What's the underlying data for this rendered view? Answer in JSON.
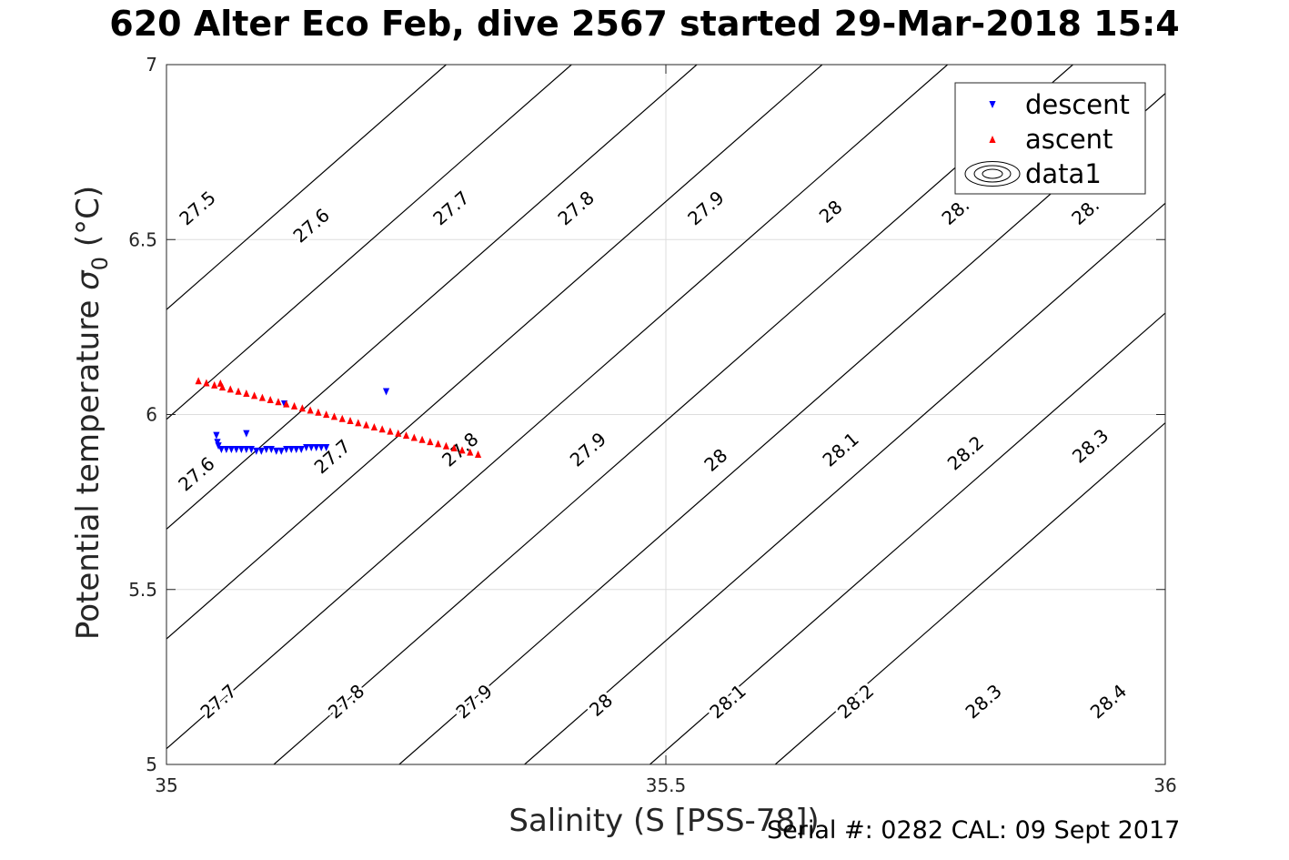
{
  "figure": {
    "title": "620 Alter Eco Feb, dive 2567 started 29-Mar-2018 15:4",
    "footer": "Serial #: 0282  CAL: 09 Sept 2017"
  },
  "colors": {
    "descent": "#0000ff",
    "ascent": "#ff0000",
    "contour": "#000000",
    "grid": "#dddddd"
  },
  "chart_data": {
    "type": "scatter",
    "xlabel": "Salinity (S [PSS-78])",
    "ylabel_main": "Potential temperature ",
    "ylabel_sym": "σ",
    "ylabel_sub": "0",
    "ylabel_unit": " (°C)",
    "xlim": [
      35,
      36
    ],
    "ylim": [
      5,
      7
    ],
    "xticks": [
      35,
      35.5,
      36
    ],
    "xtick_labels": [
      "35",
      "35.5",
      "36"
    ],
    "yticks": [
      5,
      5.5,
      6,
      6.5,
      7
    ],
    "ytick_labels": [
      "5",
      "5.5",
      "6",
      "6.5",
      "7"
    ],
    "grid": true,
    "legend_position": "top-right",
    "legend": [
      {
        "name": "descent",
        "marker": "triangle-down",
        "color": "#0000ff"
      },
      {
        "name": "ascent",
        "marker": "triangle-up",
        "color": "#ff0000"
      },
      {
        "name": "data1",
        "marker": "contour",
        "color": "#000000"
      }
    ],
    "series": [
      {
        "name": "descent",
        "marker": "triangle-down",
        "color": "#0000ff",
        "x": [
          35.05,
          35.051,
          35.052,
          35.055,
          35.06,
          35.065,
          35.07,
          35.075,
          35.08,
          35.085,
          35.09,
          35.095,
          35.1,
          35.105,
          35.11,
          35.115,
          35.12,
          35.125,
          35.13,
          35.135,
          35.14,
          35.145,
          35.15,
          35.155,
          35.16,
          35.08,
          35.118,
          35.22
        ],
        "y": [
          5.94,
          5.92,
          5.91,
          5.9,
          5.9,
          5.9,
          5.9,
          5.9,
          5.9,
          5.9,
          5.895,
          5.895,
          5.9,
          5.9,
          5.895,
          5.895,
          5.9,
          5.9,
          5.9,
          5.9,
          5.905,
          5.905,
          5.905,
          5.905,
          5.905,
          5.945,
          6.03,
          6.065
        ]
      },
      {
        "name": "ascent",
        "marker": "triangle-up",
        "color": "#ff0000",
        "x": [
          35.032,
          35.04,
          35.048,
          35.056,
          35.064,
          35.072,
          35.08,
          35.088,
          35.096,
          35.104,
          35.112,
          35.12,
          35.128,
          35.136,
          35.144,
          35.152,
          35.16,
          35.168,
          35.176,
          35.184,
          35.192,
          35.2,
          35.208,
          35.216,
          35.224,
          35.232,
          35.24,
          35.248,
          35.256,
          35.264,
          35.272,
          35.28,
          35.288,
          35.296,
          35.304,
          35.312,
          35.054
        ],
        "y": [
          6.097,
          6.091,
          6.085,
          6.079,
          6.073,
          6.067,
          6.061,
          6.055,
          6.049,
          6.043,
          6.037,
          6.031,
          6.025,
          6.019,
          6.013,
          6.007,
          6.001,
          5.995,
          5.989,
          5.983,
          5.977,
          5.971,
          5.965,
          5.959,
          5.953,
          5.947,
          5.941,
          5.935,
          5.929,
          5.923,
          5.917,
          5.911,
          5.905,
          5.899,
          5.893,
          5.887,
          6.09
        ]
      }
    ],
    "contour_levels": [
      27.5,
      27.6,
      27.7,
      27.8,
      27.9,
      28,
      28.1,
      28.2,
      28.3,
      28.4
    ],
    "contour_labels": [
      {
        "text": "27.5",
        "x": 35.031,
        "y": 6.59
      },
      {
        "text": "27.6",
        "x": 35.145,
        "y": 6.54
      },
      {
        "text": "27.7",
        "x": 35.285,
        "y": 6.59
      },
      {
        "text": "27.8",
        "x": 35.41,
        "y": 6.59
      },
      {
        "text": "27.9",
        "x": 35.54,
        "y": 6.59
      },
      {
        "text": "28",
        "x": 35.665,
        "y": 6.58
      },
      {
        "text": "28.",
        "x": 35.79,
        "y": 6.58
      },
      {
        "text": "28.",
        "x": 35.92,
        "y": 6.58
      },
      {
        "text": "27.6",
        "x": 35.03,
        "y": 5.83
      },
      {
        "text": "27.7",
        "x": 35.166,
        "y": 5.88
      },
      {
        "text": "27.8",
        "x": 35.294,
        "y": 5.9
      },
      {
        "text": "27.9",
        "x": 35.422,
        "y": 5.9
      },
      {
        "text": "28",
        "x": 35.55,
        "y": 5.87
      },
      {
        "text": "28.1",
        "x": 35.675,
        "y": 5.9
      },
      {
        "text": "28.2",
        "x": 35.8,
        "y": 5.89
      },
      {
        "text": "28.3",
        "x": 35.925,
        "y": 5.91
      },
      {
        "text": "27.7",
        "x": 35.052,
        "y": 5.18
      },
      {
        "text": "27.8",
        "x": 35.18,
        "y": 5.18
      },
      {
        "text": "27.9",
        "x": 35.308,
        "y": 5.18
      },
      {
        "text": "28",
        "x": 35.435,
        "y": 5.17
      },
      {
        "text": "28.1",
        "x": 35.562,
        "y": 5.18
      },
      {
        "text": "28.2",
        "x": 35.69,
        "y": 5.18
      },
      {
        "text": "28.3",
        "x": 35.818,
        "y": 5.18
      },
      {
        "text": "28.4",
        "x": 35.943,
        "y": 5.18
      }
    ]
  }
}
